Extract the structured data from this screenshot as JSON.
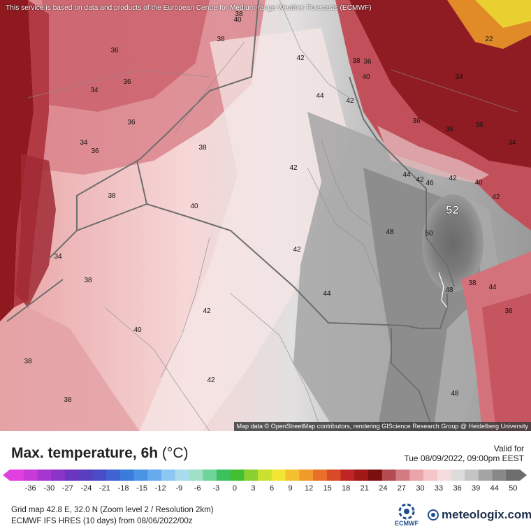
{
  "notice": "This service is based on data and products of the European Centre for Medium-range Weather Forecasts (ECMWF)",
  "attribution": "Map data © OpenStreetMap contributors, rendering GIScience Research Group @ Heidelberg University",
  "title": "Max. temperature, 6h",
  "unit": "(°C)",
  "valid_label": "Valid for",
  "valid_time": "Tue 08/09/2022, 09:00pm EEST",
  "grid_info": "Grid map 42.8 E, 32.0 N (Zoom level 2 / Resolution 2km)",
  "model_info": "ECMWF IFS HRES (10 days) from 08/06/2022/00z",
  "ecmwf_label": "ECMWF",
  "brand": "meteologix.com",
  "scale": {
    "ticks": [
      "-36",
      "-30",
      "-27",
      "-24",
      "-21",
      "-18",
      "-15",
      "-12",
      "-9",
      "-6",
      "-3",
      "0",
      "3",
      "6",
      "9",
      "12",
      "15",
      "18",
      "21",
      "24",
      "27",
      "30",
      "33",
      "36",
      "39",
      "44",
      "50"
    ],
    "colors": [
      "#e040e0",
      "#c83ad8",
      "#a636cf",
      "#8a34c8",
      "#6d36c0",
      "#5a3ec0",
      "#4a4cc6",
      "#3f63d0",
      "#3b7bdc",
      "#4a94e6",
      "#66abee",
      "#8cc6f2",
      "#a8dcee",
      "#9ee0c8",
      "#6ed49a",
      "#3cc060",
      "#40c030",
      "#8ad030",
      "#cce030",
      "#f2e632",
      "#f4c030",
      "#f09a2a",
      "#e8702a",
      "#d84a28",
      "#c02424",
      "#a01818",
      "#7c0e10",
      "#b44a52",
      "#d47a82",
      "#eaa4aa",
      "#f4c6c8",
      "#f6dcdc",
      "#dcdcdc",
      "#c4c4c4",
      "#a4a4a4",
      "#888888",
      "#6e6e6e"
    ]
  },
  "map": {
    "region_max": "52",
    "labels": [
      {
        "text": "38",
        "lon": 342,
        "lat": 23
      },
      {
        "text": "40",
        "lon": 340,
        "lat": 31
      },
      {
        "text": "38",
        "lon": 316,
        "lat": 59
      },
      {
        "text": "36",
        "lon": 164,
        "lat": 75
      },
      {
        "text": "36",
        "lon": 182,
        "lat": 120
      },
      {
        "text": "34",
        "lon": 135,
        "lat": 132
      },
      {
        "text": "36",
        "lon": 188,
        "lat": 178
      },
      {
        "text": "34",
        "lon": 120,
        "lat": 207
      },
      {
        "text": "36",
        "lon": 136,
        "lat": 219
      },
      {
        "text": "38",
        "lon": 290,
        "lat": 214
      },
      {
        "text": "42",
        "lon": 430,
        "lat": 86
      },
      {
        "text": "44",
        "lon": 458,
        "lat": 140
      },
      {
        "text": "42",
        "lon": 501,
        "lat": 147
      },
      {
        "text": "40",
        "lon": 524,
        "lat": 113
      },
      {
        "text": "38",
        "lon": 510,
        "lat": 90
      },
      {
        "text": "36",
        "lon": 526,
        "lat": 91
      },
      {
        "text": "34",
        "lon": 657,
        "lat": 113
      },
      {
        "text": "22",
        "lon": 700,
        "lat": 59
      },
      {
        "text": "36",
        "lon": 596,
        "lat": 176
      },
      {
        "text": "36",
        "lon": 643,
        "lat": 188
      },
      {
        "text": "36",
        "lon": 686,
        "lat": 182
      },
      {
        "text": "34",
        "lon": 733,
        "lat": 207
      },
      {
        "text": "42",
        "lon": 420,
        "lat": 243
      },
      {
        "text": "44",
        "lon": 582,
        "lat": 253
      },
      {
        "text": "42",
        "lon": 601,
        "lat": 260
      },
      {
        "text": "46",
        "lon": 615,
        "lat": 265
      },
      {
        "text": "42",
        "lon": 648,
        "lat": 258
      },
      {
        "text": "40",
        "lon": 685,
        "lat": 264
      },
      {
        "text": "42",
        "lon": 710,
        "lat": 285
      },
      {
        "text": "38",
        "lon": 160,
        "lat": 283
      },
      {
        "text": "40",
        "lon": 278,
        "lat": 298
      },
      {
        "text": "48",
        "lon": 558,
        "lat": 335
      },
      {
        "text": "50",
        "lon": 614,
        "lat": 337
      },
      {
        "text": "42",
        "lon": 425,
        "lat": 360
      },
      {
        "text": "34",
        "lon": 83,
        "lat": 370
      },
      {
        "text": "38",
        "lon": 126,
        "lat": 404
      },
      {
        "text": "38",
        "lon": 676,
        "lat": 408
      },
      {
        "text": "44",
        "lon": 705,
        "lat": 414
      },
      {
        "text": "48",
        "lon": 643,
        "lat": 418
      },
      {
        "text": "44",
        "lon": 468,
        "lat": 423
      },
      {
        "text": "42",
        "lon": 296,
        "lat": 448
      },
      {
        "text": "36",
        "lon": 728,
        "lat": 448
      },
      {
        "text": "40",
        "lon": 197,
        "lat": 475
      },
      {
        "text": "38",
        "lon": 40,
        "lat": 520
      },
      {
        "text": "42",
        "lon": 302,
        "lat": 547
      },
      {
        "text": "38",
        "lon": 97,
        "lat": 575
      },
      {
        "text": "48",
        "lon": 651,
        "lat": 566
      }
    ]
  }
}
